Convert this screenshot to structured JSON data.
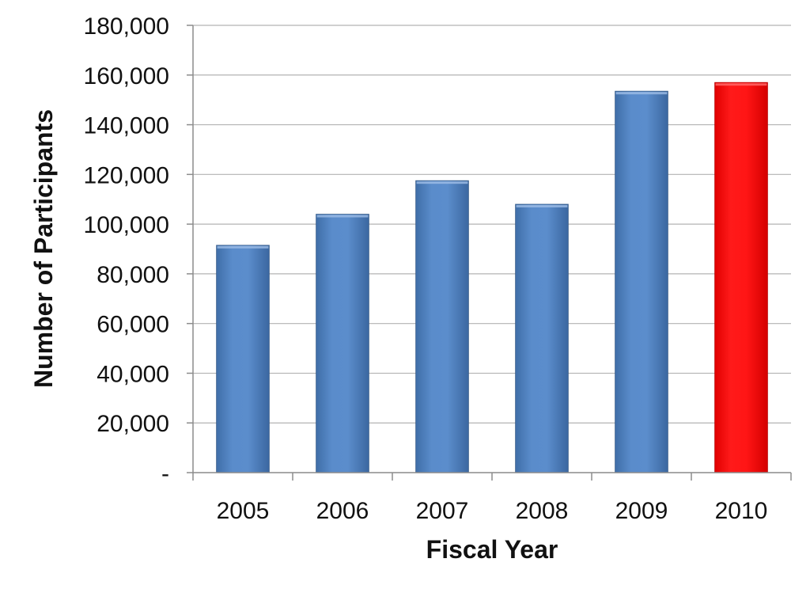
{
  "chart_data": {
    "type": "bar",
    "title": "",
    "xlabel": "Fiscal Year",
    "ylabel": "Number of Participants",
    "categories": [
      "2005",
      "2006",
      "2007",
      "2008",
      "2009",
      "2010"
    ],
    "values": [
      91500,
      104000,
      117500,
      108000,
      153500,
      157000
    ],
    "bar_colors": [
      "#4f81bd",
      "#4f81bd",
      "#4f81bd",
      "#4f81bd",
      "#4f81bd",
      "#ff0000"
    ],
    "ylim": [
      0,
      180000
    ],
    "y_ticks": [
      0,
      20000,
      40000,
      60000,
      80000,
      100000,
      120000,
      140000,
      160000,
      180000
    ],
    "y_tick_labels": [
      "-",
      "20,000",
      "40,000",
      "60,000",
      "80,000",
      "100,000",
      "120,000",
      "140,000",
      "160,000",
      "180,000"
    ],
    "grid": true,
    "legend": "none"
  }
}
